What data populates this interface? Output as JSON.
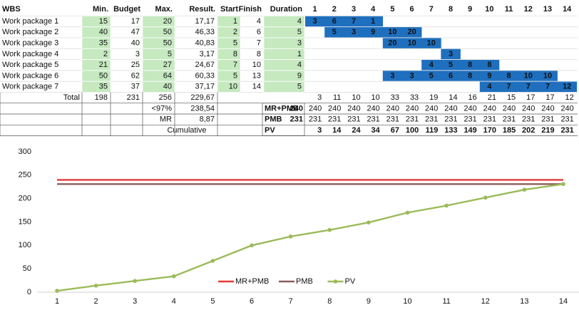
{
  "table": {
    "header": [
      "WBS",
      "Min.",
      "Budget",
      "Max.",
      "Result.",
      "Start",
      "Finish",
      "Duration",
      "1",
      "2",
      "3",
      "4",
      "5",
      "6",
      "7",
      "8",
      "9",
      "10",
      "11",
      "12",
      "13",
      "14"
    ],
    "rows": [
      {
        "cells": [
          "Work package 1",
          15,
          17,
          20,
          "17,17",
          1,
          4,
          4
        ],
        "gantt": [
          3,
          6,
          7,
          1
        ]
      },
      {
        "cells": [
          "Work package 2",
          40,
          47,
          50,
          "46,33",
          2,
          6,
          5
        ],
        "gantt": [
          5,
          3,
          9,
          10,
          20
        ]
      },
      {
        "cells": [
          "Work package 3",
          35,
          40,
          50,
          "40,83",
          5,
          7,
          3
        ],
        "gantt": [
          20,
          10,
          10
        ]
      },
      {
        "cells": [
          "Work package 4",
          2,
          3,
          5,
          "3,17",
          8,
          8,
          1
        ],
        "gantt": [
          3
        ]
      },
      {
        "cells": [
          "Work package 5",
          21,
          25,
          27,
          "24,67",
          7,
          10,
          4
        ],
        "gantt": [
          4,
          5,
          8,
          8
        ]
      },
      {
        "cells": [
          "Work package 6",
          50,
          62,
          64,
          "60,33",
          5,
          13,
          9
        ],
        "gantt": [
          3,
          3,
          5,
          6,
          8,
          9,
          8,
          10,
          10
        ]
      },
      {
        "cells": [
          "Work package 7",
          35,
          37,
          40,
          "37,17",
          10,
          14,
          5
        ],
        "gantt": [
          4,
          7,
          7,
          7,
          12
        ]
      }
    ],
    "total": {
      "label": "Total",
      "cells": [
        198,
        231,
        256,
        "229,67"
      ],
      "values": [
        3,
        11,
        10,
        10,
        33,
        33,
        19,
        14,
        16,
        21,
        15,
        17,
        17,
        12
      ]
    },
    "p97": {
      "label": "<97%",
      "value": "238,54",
      "key": "MR+PMB",
      "key_value": 240,
      "values": [
        240,
        240,
        240,
        240,
        240,
        240,
        240,
        240,
        240,
        240,
        240,
        240,
        240,
        240
      ]
    },
    "mr": {
      "label": "MR",
      "value": "8,87",
      "key": "PMB",
      "key_value": 231,
      "values": [
        231,
        231,
        231,
        231,
        231,
        231,
        231,
        231,
        231,
        231,
        231,
        231,
        231,
        231
      ]
    },
    "cumulative": {
      "label": "Cumulative",
      "key": "PV",
      "values": [
        3,
        14,
        24,
        34,
        67,
        100,
        119,
        133,
        149,
        170,
        185,
        202,
        219,
        231
      ]
    }
  },
  "chart_data": {
    "type": "line",
    "x": [
      1,
      2,
      3,
      4,
      5,
      6,
      7,
      8,
      9,
      10,
      11,
      12,
      13,
      14
    ],
    "xlim": [
      1,
      14
    ],
    "xticks": [
      1,
      2,
      3,
      4,
      5,
      6,
      7,
      8,
      9,
      10,
      11,
      12,
      13,
      14
    ],
    "ylim": [
      0,
      300
    ],
    "yticks": [
      0,
      50,
      100,
      150,
      200,
      250,
      300
    ],
    "grid": false,
    "legend": "bottom",
    "series": [
      {
        "name": "MR+PMB",
        "color": "#e8363a",
        "marker": false,
        "values": [
          240,
          240,
          240,
          240,
          240,
          240,
          240,
          240,
          240,
          240,
          240,
          240,
          240,
          240
        ]
      },
      {
        "name": "PMB",
        "color": "#8b5e5b",
        "marker": false,
        "values": [
          231,
          231,
          231,
          231,
          231,
          231,
          231,
          231,
          231,
          231,
          231,
          231,
          231,
          231
        ]
      },
      {
        "name": "PV",
        "color": "#9bbb59",
        "marker": true,
        "values": [
          3,
          14,
          24,
          34,
          67,
          100,
          119,
          133,
          149,
          170,
          185,
          202,
          219,
          231
        ]
      }
    ]
  }
}
